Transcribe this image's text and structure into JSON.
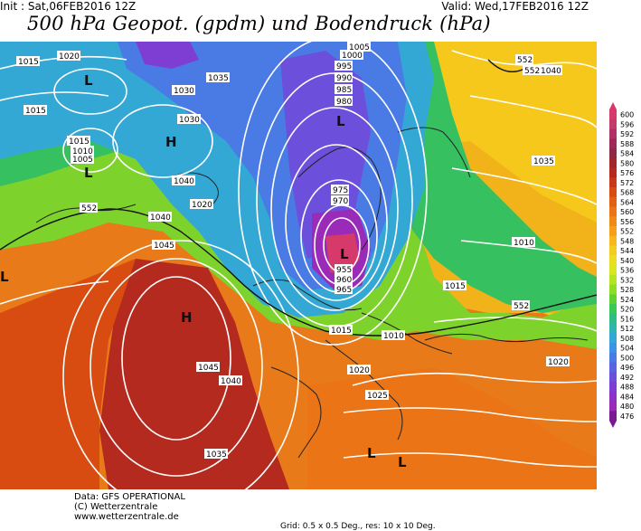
{
  "header": {
    "init": "Init : Sat,06FEB2016 12Z",
    "valid": "Valid: Wed,17FEB2016 12Z",
    "title": "500 hPa Geopot. (gpdm) und Bodendruck (hPa)"
  },
  "legend": {
    "levels": [
      "600",
      "596",
      "592",
      "588",
      "584",
      "580",
      "576",
      "572",
      "568",
      "564",
      "560",
      "556",
      "552",
      "548",
      "544",
      "540",
      "536",
      "532",
      "528",
      "524",
      "520",
      "516",
      "512",
      "508",
      "504",
      "500",
      "496",
      "492",
      "488",
      "484",
      "480",
      "476"
    ],
    "colors": [
      "#d63a6a",
      "#c43a6a",
      "#b0306a",
      "#9e2a5a",
      "#8e2a44",
      "#a0282c",
      "#b52a1e",
      "#c83818",
      "#d84c12",
      "#e26014",
      "#ea7416",
      "#f08a16",
      "#f4a018",
      "#f6b81c",
      "#f4cc20",
      "#ecdc22",
      "#d8e624",
      "#b4e424",
      "#8ede26",
      "#5ed234",
      "#3cc858",
      "#2ebe84",
      "#30b4b0",
      "#34a8d4",
      "#3c92e4",
      "#4a7ae4",
      "#5a64e0",
      "#6c50dc",
      "#7e3ed4",
      "#8c32c8",
      "#9a2ab8",
      "#7a1a90"
    ]
  },
  "map": {
    "pressure_labels": [
      "1015",
      "1020",
      "1030",
      "1035",
      "1015",
      "1015",
      "1010",
      "1005",
      "1040",
      "1020",
      "1005",
      "1000",
      "995",
      "990",
      "985",
      "980",
      "975",
      "970",
      "955",
      "960",
      "965",
      "1015",
      "1010",
      "1015",
      "1010",
      "1020",
      "1025",
      "1020",
      "1040",
      "1045",
      "1040",
      "1045",
      "1035",
      "1035",
      "1040",
      "1030"
    ],
    "geopot_labels": [
      "552",
      "552",
      "552",
      "552"
    ],
    "centers": [
      "L",
      "L",
      "H",
      "L",
      "L",
      "H",
      "L",
      "L",
      "L"
    ]
  },
  "footer": {
    "line1": "Data: GFS OPERATIONAL",
    "line2": "(C) Wetterzentrale",
    "line3": "www.wetterzentrale.de",
    "line4": "Grid: 0.5 x 0.5 Deg., res: 10 x 10 Deg."
  }
}
